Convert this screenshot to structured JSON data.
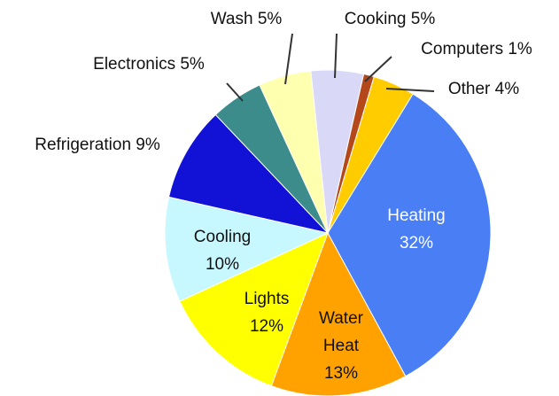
{
  "chart_data": {
    "type": "pie",
    "categories": [
      "Cooking",
      "Computers",
      "Other",
      "Heating",
      "Water Heat",
      "Lights",
      "Cooling",
      "Refrigeration",
      "Electronics",
      "Wash"
    ],
    "values": [
      5,
      1,
      4,
      32,
      13,
      12,
      10,
      9,
      5,
      5
    ],
    "value_labels": [
      "5%",
      "1%",
      "4%",
      "32%",
      "13%",
      "12%",
      "10%",
      "9%",
      "5%",
      "5%"
    ],
    "colors": [
      "#d9d9f7",
      "#b5481a",
      "#ffcc00",
      "#4a7ef5",
      "#ffa200",
      "#ffff00",
      "#c8f8ff",
      "#1212d6",
      "#3d8c8c",
      "#ffffb0"
    ]
  }
}
